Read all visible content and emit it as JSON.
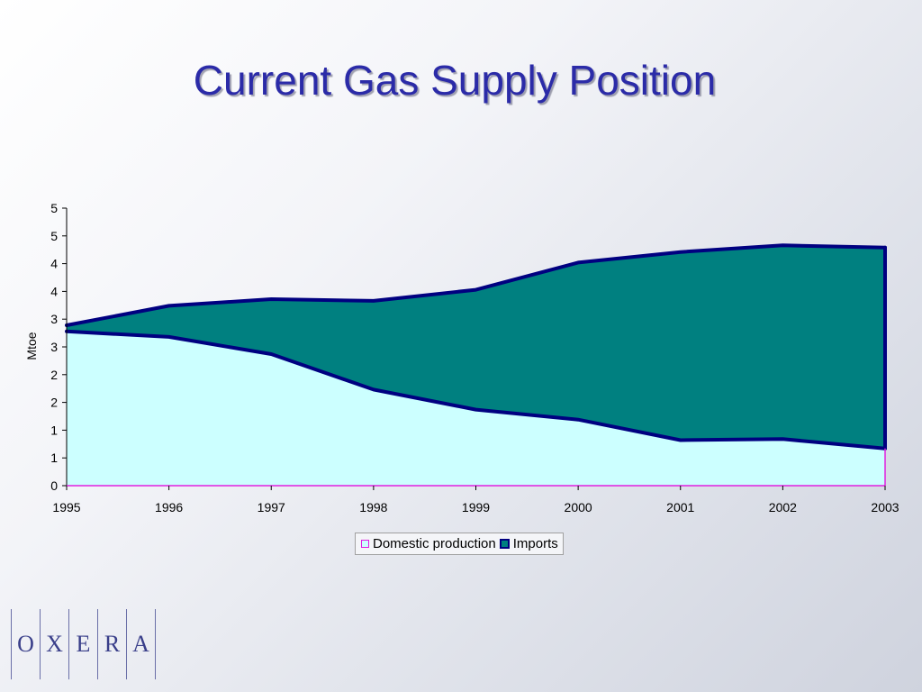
{
  "slide": {
    "title": "Current Gas Supply Position"
  },
  "chart_data": {
    "type": "area",
    "stacked": true,
    "x": [
      "1995",
      "1996",
      "1997",
      "1998",
      "1999",
      "2000",
      "2001",
      "2002",
      "2003"
    ],
    "series": [
      {
        "name": "Domestic production",
        "values": [
          2.78,
          2.68,
          2.37,
          1.73,
          1.37,
          1.19,
          0.82,
          0.84,
          0.67
        ],
        "fill": "#ccffff",
        "stroke": "#000080"
      },
      {
        "name": "Imports",
        "values": [
          0.11,
          0.56,
          0.99,
          1.6,
          2.16,
          2.83,
          3.39,
          3.49,
          3.62
        ],
        "fill": "#008080",
        "stroke": "#000080"
      }
    ],
    "ylabel": "Mtoe",
    "xlabel": "",
    "ylim": [
      0,
      5
    ],
    "y_tick_values": [
      0,
      0.5,
      1,
      1.5,
      2,
      2.5,
      3,
      3.5,
      4,
      4.5,
      5
    ],
    "y_tick_labels": [
      "0",
      "1",
      "1",
      "2",
      "2",
      "3",
      "3",
      "4",
      "4",
      "5",
      "5"
    ],
    "grid": false,
    "legend_position": "bottom"
  },
  "logo": {
    "letters": [
      "O",
      "X",
      "E",
      "R",
      "A"
    ]
  }
}
